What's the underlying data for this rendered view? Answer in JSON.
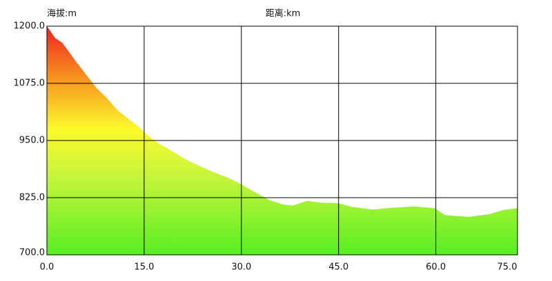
{
  "chart_data": {
    "type": "area",
    "y_axis_label": "海拔:m",
    "x_axis_label": "距离:km",
    "x": [
      0,
      0.74,
      1.28,
      2.34,
      3.4,
      4.5,
      5.5,
      6.6,
      7.7,
      9.3,
      10.9,
      12.5,
      14.0,
      15.6,
      17.2,
      19.4,
      21.5,
      23.6,
      25.7,
      27.9,
      30.0,
      32.1,
      34.3,
      36.4,
      38.0,
      40.1,
      42.2,
      44.9,
      47.0,
      50.2,
      53.4,
      56.6,
      59.8,
      61.4,
      63.0,
      65.1,
      68.3,
      70.4,
      72.6
    ],
    "values": [
      1200,
      1185,
      1174,
      1164,
      1144,
      1122,
      1104,
      1084,
      1064,
      1042,
      1016,
      998,
      982,
      961,
      944,
      926,
      908,
      894,
      881,
      869,
      854,
      837,
      820,
      810,
      808,
      818,
      814,
      813,
      805,
      799,
      803,
      806,
      802,
      787,
      785,
      783,
      789,
      798,
      802
    ],
    "xlim": [
      0,
      72.6
    ],
    "ylim": [
      700,
      1200
    ],
    "xticks": [
      {
        "value": 0,
        "label": "0.0"
      },
      {
        "value": 15,
        "label": "15.0"
      },
      {
        "value": 30,
        "label": "30.0"
      },
      {
        "value": 45,
        "label": "45.0"
      },
      {
        "value": 60,
        "label": "60.0"
      },
      {
        "value": 75,
        "label": "75.0"
      }
    ],
    "yticks": [
      {
        "value": 700,
        "label": "700.0"
      },
      {
        "value": 825,
        "label": "825.0"
      },
      {
        "value": 950,
        "label": "950.0"
      },
      {
        "value": 1075,
        "label": "1075.0"
      },
      {
        "value": 1200,
        "label": "1200.0"
      }
    ],
    "grid": true
  }
}
